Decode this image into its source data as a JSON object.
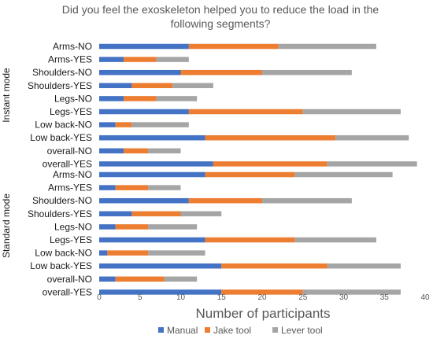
{
  "chart_data": {
    "type": "bar",
    "orientation": "horizontal",
    "stacked": true,
    "title": "Did you feel the exoskeleton helped you to reduce the load in the following segments?",
    "title_lines": [
      "Did you feel the exoskeleton helped you to reduce the load in the",
      "following segments?"
    ],
    "xlabel": "Number of participants",
    "xlim": [
      0,
      40
    ],
    "xticks": [
      0,
      5,
      10,
      15,
      20,
      25,
      30,
      35,
      40
    ],
    "grid": false,
    "legend_position": "bottom",
    "groups": [
      {
        "name": "Instant mode",
        "categories": [
          "Arms-NO",
          "Arms-YES",
          "Shoulders-NO",
          "Shoulders-YES",
          "Legs-NO",
          "Legs-YES",
          "Low back-NO",
          "Low back-YES",
          "overall-NO",
          "overall-YES"
        ],
        "series": [
          {
            "name": "Manual",
            "values": [
              11,
              3,
              10,
              4,
              3,
              11,
              2,
              13,
              3,
              14
            ]
          },
          {
            "name": "Jake tool",
            "values": [
              11,
              4,
              10,
              5,
              4,
              14,
              2,
              16,
              3,
              14
            ]
          },
          {
            "name": "Lever tool",
            "values": [
              12,
              4,
              11,
              5,
              5,
              12,
              7,
              9,
              4,
              11
            ]
          }
        ]
      },
      {
        "name": "Standard mode",
        "categories": [
          "Arms-NO",
          "Arms-YES",
          "Shoulders-NO",
          "Shoulders-YES",
          "Legs-NO",
          "Legs-YES",
          "Low back-NO",
          "Low back-YES",
          "overall-NO",
          "overall-YES"
        ],
        "series": [
          {
            "name": "Manual",
            "values": [
              13,
              2,
              11,
              4,
              2,
              13,
              1,
              15,
              2,
              15
            ]
          },
          {
            "name": "Jake tool",
            "values": [
              11,
              4,
              9,
              6,
              4,
              11,
              5,
              13,
              6,
              10
            ]
          },
          {
            "name": "Lever tool",
            "values": [
              12,
              4,
              11,
              5,
              6,
              10,
              7,
              9,
              4,
              12
            ]
          }
        ]
      }
    ],
    "colors": {
      "Manual": "#4472C4",
      "Jake tool": "#ED7D31",
      "Lever tool": "#A5A5A5"
    }
  }
}
